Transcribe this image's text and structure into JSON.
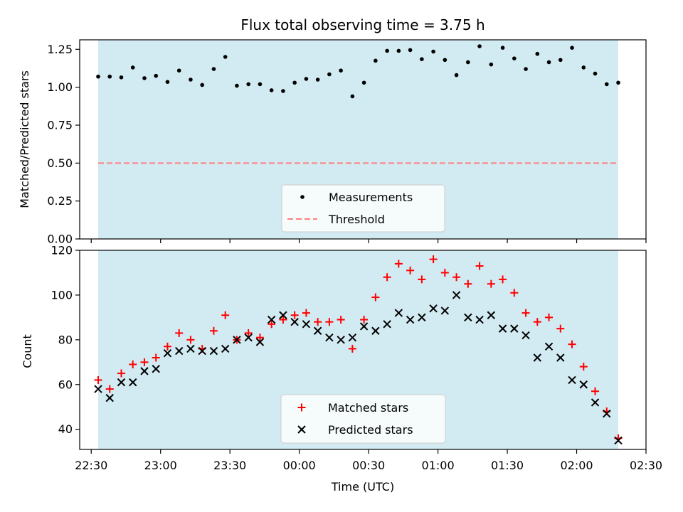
{
  "chart_data": [
    {
      "type": "scatter",
      "title": "Flux total observing time = 3.75 h",
      "xlabel": "",
      "ylabel": "Matched/Predicted stars",
      "ylim": [
        0.0,
        1.3125
      ],
      "yticks": [
        "0.00",
        "0.25",
        "0.50",
        "0.75",
        "1.00",
        "1.25"
      ],
      "ytick_values": [
        0.0,
        0.25,
        0.5,
        0.75,
        1.0,
        1.25
      ],
      "shaded_region": {
        "x_start": "22:33",
        "x_end": "02:18",
        "color": "#add8e6"
      },
      "legend": {
        "position": "lower-center",
        "entries": [
          "Measurements",
          "Threshold"
        ]
      },
      "threshold": {
        "name": "Threshold",
        "value": 0.5,
        "color": "#ff7f7f",
        "style": "dashed"
      },
      "series": [
        {
          "name": "Measurements",
          "marker": "dot",
          "color": "#000000",
          "x": [
            "22:33",
            "22:38",
            "22:43",
            "22:48",
            "22:53",
            "22:58",
            "23:03",
            "23:08",
            "23:13",
            "23:18",
            "23:23",
            "23:28",
            "23:33",
            "23:38",
            "23:43",
            "23:48",
            "23:53",
            "23:58",
            "00:03",
            "00:08",
            "00:13",
            "00:18",
            "00:23",
            "00:28",
            "00:33",
            "00:38",
            "00:43",
            "00:48",
            "00:53",
            "00:58",
            "01:03",
            "01:08",
            "01:13",
            "01:18",
            "01:23",
            "01:28",
            "01:33",
            "01:38",
            "01:43",
            "01:48",
            "01:53",
            "01:58",
            "02:03",
            "02:08",
            "02:13",
            "02:18"
          ],
          "values": [
            1.07,
            1.07,
            1.065,
            1.13,
            1.06,
            1.075,
            1.035,
            1.11,
            1.05,
            1.015,
            1.12,
            1.2,
            1.01,
            1.02,
            1.02,
            0.98,
            0.975,
            1.03,
            1.055,
            1.05,
            1.085,
            1.11,
            0.94,
            1.03,
            1.175,
            1.24,
            1.24,
            1.245,
            1.185,
            1.235,
            1.18,
            1.08,
            1.165,
            1.27,
            1.15,
            1.26,
            1.19,
            1.12,
            1.22,
            1.165,
            1.18,
            1.26,
            1.13,
            1.09,
            1.02,
            1.03
          ]
        }
      ]
    },
    {
      "type": "scatter",
      "title": "",
      "xlabel": "Time (UTC)",
      "ylabel": "Count",
      "ylim": [
        31,
        120
      ],
      "yticks": [
        "40",
        "60",
        "80",
        "100",
        "120"
      ],
      "ytick_values": [
        40,
        60,
        80,
        100,
        120
      ],
      "xlim": [
        "22:25",
        "02:30"
      ],
      "xticks": [
        "22:30",
        "23:00",
        "23:30",
        "00:00",
        "00:30",
        "01:00",
        "01:30",
        "02:00",
        "02:30"
      ],
      "shaded_region": {
        "x_start": "22:33",
        "x_end": "02:18",
        "color": "#add8e6"
      },
      "legend": {
        "position": "lower-center",
        "entries": [
          "Matched stars",
          "Predicted stars"
        ]
      },
      "x": [
        "22:33",
        "22:38",
        "22:43",
        "22:48",
        "22:53",
        "22:58",
        "23:03",
        "23:08",
        "23:13",
        "23:18",
        "23:23",
        "23:28",
        "23:33",
        "23:38",
        "23:43",
        "23:48",
        "23:53",
        "23:58",
        "00:03",
        "00:08",
        "00:13",
        "00:18",
        "00:23",
        "00:28",
        "00:33",
        "00:38",
        "00:43",
        "00:48",
        "00:53",
        "00:58",
        "01:03",
        "01:08",
        "01:13",
        "01:18",
        "01:23",
        "01:28",
        "01:33",
        "01:38",
        "01:43",
        "01:48",
        "01:53",
        "01:58",
        "02:03",
        "02:08",
        "02:13",
        "02:18"
      ],
      "series": [
        {
          "name": "Matched stars",
          "marker": "plus",
          "color": "#ff0000",
          "values": [
            62,
            58,
            65,
            69,
            70,
            72,
            77,
            83,
            80,
            76,
            84,
            91,
            80,
            83,
            81,
            87,
            89,
            91,
            92,
            88,
            88,
            89,
            76,
            89,
            99,
            108,
            114,
            111,
            107,
            116,
            110,
            108,
            105,
            113,
            105,
            107,
            101,
            92,
            88,
            90,
            85,
            78,
            68,
            57,
            48,
            36
          ]
        },
        {
          "name": "Predicted stars",
          "marker": "x",
          "color": "#000000",
          "values": [
            58,
            54,
            61,
            61,
            66,
            67,
            74,
            75,
            76,
            75,
            75,
            76,
            80,
            81,
            79,
            89,
            91,
            88,
            87,
            84,
            81,
            80,
            81,
            86,
            84,
            87,
            92,
            89,
            90,
            94,
            93,
            100,
            90,
            89,
            91,
            85,
            85,
            82,
            72,
            77,
            72,
            62,
            60,
            52,
            47,
            35
          ]
        }
      ]
    }
  ]
}
